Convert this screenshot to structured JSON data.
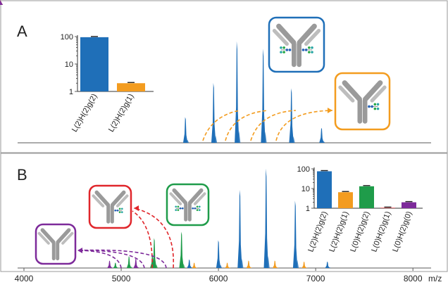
{
  "colors": {
    "blue": "#1f6fb8",
    "orange": "#f39c1f",
    "green": "#1f9c4a",
    "purple": "#7d2a9a",
    "red": "#e0262b",
    "antibody_gray": "#9a9a9a",
    "glycan_blue": "#2463b8",
    "glycan_green": "#27a844",
    "glycan_teal": "#2aa6a6",
    "panel_border": "#9a9a9a"
  },
  "chart_data": [
    {
      "panel": "A",
      "type": "mass-spectrum",
      "peaks": [
        {
          "x": 5660,
          "h": 0.24,
          "series": "blue"
        },
        {
          "x": 5950,
          "h": 0.56,
          "series": "blue"
        },
        {
          "x": 6190,
          "h": 0.95,
          "series": "blue"
        },
        {
          "x": 6460,
          "h": 0.88,
          "series": "blue"
        },
        {
          "x": 6750,
          "h": 0.51,
          "series": "blue"
        },
        {
          "x": 7060,
          "h": 0.14,
          "series": "blue"
        }
      ],
      "inset": {
        "type": "bar",
        "yscale": "log",
        "ylim": [
          1,
          100
        ],
        "yticks": [
          "100",
          "10",
          "1"
        ],
        "categories": [
          "L(2)H(2)g(2)",
          "L(2)H(2)g(1)"
        ],
        "values": [
          95,
          2
        ],
        "colors": [
          "#1f6fb8",
          "#f39c1f"
        ]
      },
      "annotations": {
        "label": "A"
      },
      "icons": [
        {
          "name": "antibody-glycan-2-icon",
          "border": "#1f6fb8",
          "glycans": 2
        },
        {
          "name": "antibody-glycan-1-icon",
          "border": "#f39c1f",
          "glycans": 1
        }
      ]
    },
    {
      "panel": "B",
      "type": "mass-spectrum",
      "xlim": [
        4000,
        8100
      ],
      "xticks": [
        4000,
        5000,
        6000,
        7000,
        8000
      ],
      "xunit": "m/z",
      "peaks": [
        {
          "x": 4880,
          "h": 0.07,
          "series": "purple"
        },
        {
          "x": 4940,
          "h": 0.05,
          "series": "green"
        },
        {
          "x": 5080,
          "h": 0.11,
          "series": "green"
        },
        {
          "x": 5150,
          "h": 0.09,
          "series": "purple"
        },
        {
          "x": 5320,
          "h": 0.13,
          "series": "green"
        },
        {
          "x": 5340,
          "h": 0.12,
          "series": "orange"
        },
        {
          "x": 5340,
          "h": 0.28,
          "series": "green"
        },
        {
          "x": 5620,
          "h": 0.34,
          "series": "green"
        },
        {
          "x": 5700,
          "h": 0.08,
          "series": "blue"
        },
        {
          "x": 5750,
          "h": 0.05,
          "series": "orange"
        },
        {
          "x": 6000,
          "h": 0.26,
          "series": "blue"
        },
        {
          "x": 6090,
          "h": 0.05,
          "series": "orange"
        },
        {
          "x": 6220,
          "h": 0.73,
          "series": "blue"
        },
        {
          "x": 6310,
          "h": 0.07,
          "series": "orange"
        },
        {
          "x": 6490,
          "h": 0.93,
          "series": "blue"
        },
        {
          "x": 6580,
          "h": 0.07,
          "series": "orange"
        },
        {
          "x": 6790,
          "h": 0.63,
          "series": "blue"
        },
        {
          "x": 6880,
          "h": 0.06,
          "series": "orange"
        },
        {
          "x": 7120,
          "h": 0.06,
          "series": "blue"
        }
      ],
      "inset": {
        "type": "bar",
        "yscale": "log",
        "ylim": [
          1,
          100
        ],
        "yticks": [
          "100",
          "10",
          "1"
        ],
        "categories": [
          "L(2)H(2)g(2)",
          "L(2)H(2)g(1)",
          "L(0)H(2)g(2)",
          "L(0)H(2)g(1)",
          "L(0)H(2)g(0)"
        ],
        "values": [
          75,
          6.5,
          13,
          1.05,
          2
        ],
        "colors": [
          "#1f6fb8",
          "#f39c1f",
          "#1f9c4a",
          "#e0262b",
          "#7d2a9a"
        ]
      },
      "annotations": {
        "label": "B"
      },
      "icons": [
        {
          "name": "antibody-no-glycan-icon",
          "border": "#7d2a9a",
          "glycans": 0
        },
        {
          "name": "antibody-glycan-1-icon",
          "border": "#e0262b",
          "glycans": 1
        },
        {
          "name": "antibody-glycan-2-icon",
          "border": "#1f9c4a",
          "glycans": 2
        }
      ]
    }
  ]
}
